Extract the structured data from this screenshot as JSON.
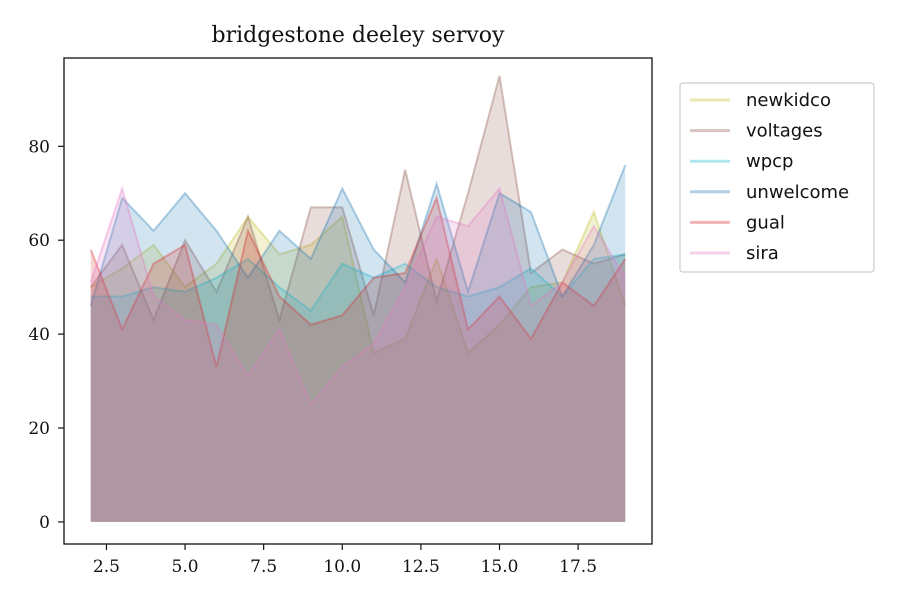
{
  "chart_data": {
    "type": "area",
    "title": "bridgestone deeley servoy",
    "xlabel": "",
    "ylabel": "",
    "xlim": [
      1.15,
      19.85
    ],
    "ylim": [
      -4.7,
      98.8
    ],
    "xticks": [
      2.5,
      5.0,
      7.5,
      10.0,
      12.5,
      15.0,
      17.5
    ],
    "xtick_labels": [
      "2.5",
      "5.0",
      "7.5",
      "10.0",
      "12.5",
      "15.0",
      "17.5"
    ],
    "yticks": [
      0,
      20,
      40,
      60,
      80
    ],
    "ytick_labels": [
      "0",
      "20",
      "40",
      "60",
      "80"
    ],
    "grid": false,
    "legend_position": "outside-right",
    "x": [
      2,
      3,
      4,
      5,
      6,
      7,
      8,
      9,
      10,
      11,
      12,
      13,
      14,
      15,
      16,
      17,
      18,
      19
    ],
    "series": [
      {
        "name": "newkidco",
        "color": "#bcbd22",
        "values": [
          50,
          54,
          59,
          50,
          55,
          65,
          57,
          59,
          65,
          36,
          39,
          56,
          36,
          42,
          50,
          51,
          66,
          46
        ]
      },
      {
        "name": "voltages",
        "color": "#8c564b",
        "values": [
          50,
          59,
          43,
          60,
          49,
          65,
          43,
          67,
          67,
          44,
          75,
          47,
          70,
          95,
          53,
          58,
          55,
          57
        ]
      },
      {
        "name": "wpcp",
        "color": "#17becf",
        "values": [
          48,
          48,
          50,
          49,
          52,
          56,
          50,
          45,
          55,
          52,
          55,
          50,
          48,
          50,
          54,
          48,
          56,
          57
        ]
      },
      {
        "name": "unwelcome",
        "color": "#1f77b4",
        "values": [
          46,
          69,
          62,
          70,
          62,
          52,
          62,
          56,
          71,
          58,
          51,
          72,
          49,
          70,
          66,
          48,
          59,
          76
        ]
      },
      {
        "name": "gual",
        "color": "#d62728",
        "values": [
          58,
          41,
          55,
          59,
          33,
          62,
          48,
          42,
          44,
          52,
          53,
          69,
          41,
          48,
          39,
          51,
          46,
          56
        ]
      },
      {
        "name": "sira",
        "color": "#e377c2",
        "values": [
          51,
          71,
          48,
          43,
          42,
          31,
          41,
          25,
          33,
          38,
          50,
          65,
          63,
          71,
          46,
          51,
          63,
          52
        ]
      }
    ]
  }
}
